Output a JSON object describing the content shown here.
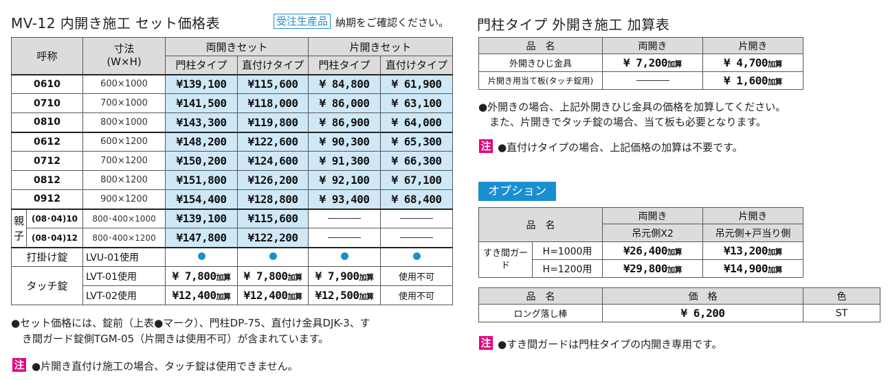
{
  "left": {
    "title": "MV-12 内開き施工 セット価格表",
    "badge": "受注生産品",
    "badge_note": "納期をご確認ください。",
    "headers": {
      "name": "呼称",
      "size": "寸法",
      "size_unit": "(W×H)",
      "double": "両開きセット",
      "single": "片開きセット",
      "post": "門柱タイプ",
      "direct": "直付けタイプ"
    },
    "rows": [
      {
        "code": "0610",
        "size": "600×1000",
        "p": [
          "¥139,100",
          "¥115,600",
          "¥ 84,800",
          "¥ 61,900"
        ]
      },
      {
        "code": "0710",
        "size": "700×1000",
        "p": [
          "¥141,500",
          "¥118,000",
          "¥ 86,000",
          "¥ 63,100"
        ]
      },
      {
        "code": "0810",
        "size": "800×1000",
        "p": [
          "¥143,300",
          "¥119,800",
          "¥ 86,900",
          "¥ 64,000"
        ]
      },
      {
        "code": "0612",
        "size": "600×1200",
        "p": [
          "¥148,200",
          "¥122,600",
          "¥ 90,300",
          "¥ 65,300"
        ]
      },
      {
        "code": "0712",
        "size": "700×1200",
        "p": [
          "¥150,200",
          "¥124,600",
          "¥ 91,300",
          "¥ 66,300"
        ]
      },
      {
        "code": "0812",
        "size": "800×1200",
        "p": [
          "¥151,800",
          "¥126,200",
          "¥ 92,100",
          "¥ 67,100"
        ]
      },
      {
        "code": "0912",
        "size": "900×1200",
        "p": [
          "¥154,400",
          "¥128,800",
          "¥ 93,400",
          "¥ 68,400"
        ]
      }
    ],
    "oyako": {
      "label1": "親",
      "label2": "子",
      "rows": [
        {
          "code": "(08･04)10",
          "size": "800･400×1000",
          "p": [
            "¥139,100",
            "¥115,600"
          ]
        },
        {
          "code": "(08･04)12",
          "size": "800･400×1200",
          "p": [
            "¥147,800",
            "¥122,200"
          ]
        }
      ]
    },
    "uchikake": {
      "label": "打掛け錠",
      "model": "LVU-01使用"
    },
    "touch": {
      "label": "タッチ錠",
      "rows": [
        {
          "model": "LVT-01使用",
          "p": [
            "¥ 7,800",
            "¥ 7,800",
            "¥ 7,900"
          ],
          "last": "使用不可"
        },
        {
          "model": "LVT-02使用",
          "p": [
            "¥12,400",
            "¥12,400",
            "¥12,500"
          ],
          "last": "使用不可"
        }
      ]
    },
    "kasan": "加算",
    "note1": "●セット価格には、錠前（上表●マーク）、門柱DP-75、直付け金具DJK-3、す",
    "note2": "き間ガード錠側TGM-05（片開きは使用不可）が含まれています。",
    "chu": "注",
    "note3": "●片開き直付け施工の場合、タッチ錠は使用できません。"
  },
  "right": {
    "title": "門柱タイプ 外開き施工 加算表",
    "t1": {
      "h": [
        "品　名",
        "両開き",
        "片開き"
      ],
      "rows": [
        {
          "name": "外開きひじ金具",
          "a": "¥ 7,200",
          "b": "¥ 4,700"
        },
        {
          "name": "片開き用当て板(タッチ錠用)",
          "a": "",
          "b": "¥ 1,600"
        }
      ]
    },
    "note1": "●外開きの場合、上記外開きひじ金具の価格を加算してください。",
    "note2": "また、片開きでタッチ錠の場合、当て板も必要となります。",
    "note3": "●直付けタイプの場合、上記価格の加算は不要です。",
    "option": "オプション",
    "t2": {
      "name": "品　名",
      "double": "両開き",
      "single": "片開き",
      "double_sub": "吊元側X2",
      "single_sub": "吊元側+戸当り側",
      "group": "すき間ガード",
      "rows": [
        {
          "h": "H=1000用",
          "a": "¥26,400",
          "b": "¥13,200"
        },
        {
          "h": "H=1200用",
          "a": "¥29,800",
          "b": "¥14,900"
        }
      ]
    },
    "t3": {
      "h": [
        "品　名",
        "価　格",
        "色"
      ],
      "row": {
        "name": "ロング落し棒",
        "price": "¥ 6,200",
        "color": "ST"
      }
    },
    "note4": "●すき間ガードは門柱タイプの内開き専用です。"
  }
}
